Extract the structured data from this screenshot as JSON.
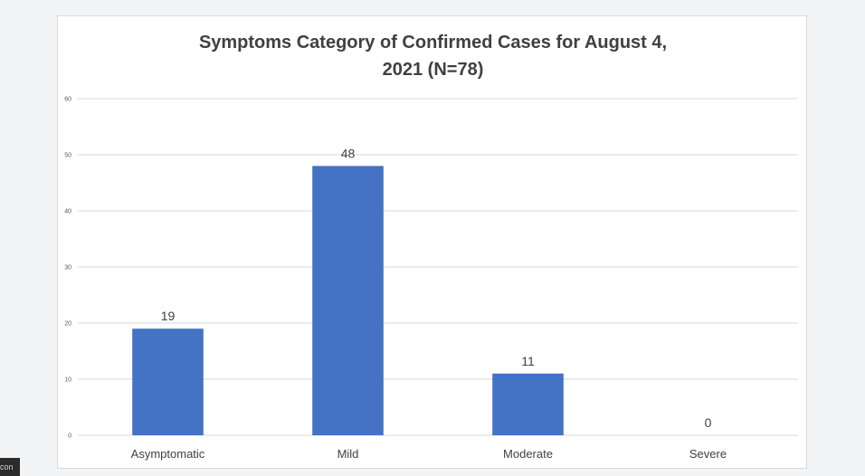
{
  "chart_data": {
    "type": "bar",
    "title": "Symptoms Category of Confirmed Cases for  August 4,\n2021 (N=78)",
    "categories": [
      "Asymptomatic",
      "Mild",
      "Moderate",
      "Severe"
    ],
    "values": [
      19,
      48,
      11,
      0
    ],
    "xlabel": "",
    "ylabel": "",
    "ylim": [
      0,
      60
    ],
    "yticks": [
      0,
      10,
      20,
      30,
      40,
      50,
      60
    ],
    "grid": true,
    "legend": "none",
    "bar_color": "#4472c4",
    "grid_color": "#d9d9d9"
  },
  "overlay": {
    "corner_text": "con"
  }
}
